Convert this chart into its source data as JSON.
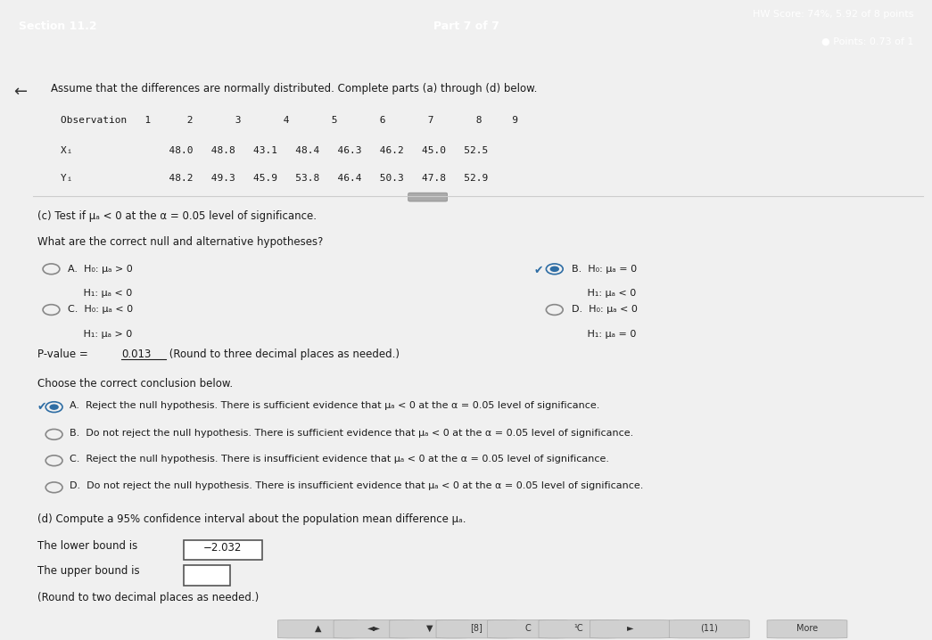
{
  "header_bg": "#2e6da4",
  "header_text_center": "Part 7 of 7",
  "body_bg": "#f0f0f0",
  "main_bg": "#ffffff",
  "title_text": "Assume that the differences are normally distributed. Complete parts (a) through (d) below.",
  "part_c_header": "(c) Test if μₐ < 0 at the α = 0.05 level of significance.",
  "hypotheses_prompt": "What are the correct null and alternative hypotheses?",
  "opt_A_h0": "H₀: μₐ > 0",
  "opt_A_h1": "H₁: μₐ < 0",
  "opt_B_h0": "H₀: μₐ = 0",
  "opt_B_h1": "H₁: μₐ < 0",
  "opt_C_h0": "H₀: μₐ < 0",
  "opt_C_h1": "H₁: μₐ > 0",
  "opt_D_h0": "H₀: μₐ < 0",
  "opt_D_h1": "H₁: μₐ = 0",
  "pvalue_prefix": "P-value = ",
  "pvalue_val": "0.013",
  "pvalue_suffix": " (Round to three decimal places as needed.)",
  "conclusion_prompt": "Choose the correct conclusion below.",
  "concl_A": "Reject the null hypothesis. There is sufficient evidence that μₐ < 0 at the α = 0.05 level of significance.",
  "concl_B": "Do not reject the null hypothesis. There is sufficient evidence that μₐ < 0 at the α = 0.05 level of significance.",
  "concl_C": "Reject the null hypothesis. There is insufficient evidence that μₐ < 0 at the α = 0.05 level of significance.",
  "concl_D": "Do not reject the null hypothesis. There is insufficient evidence that μₐ < 0 at the α = 0.05 level of significance.",
  "part_d_header": "(d) Compute a 95% confidence interval about the population mean difference μₐ.",
  "lower_bound_label": "The lower bound is",
  "lower_bound_value": "−2.032",
  "upper_bound_label": "The upper bound is",
  "round_note": "(Round to two decimal places as needed.)",
  "text_color": "#1a1a1a",
  "selected_color": "#2e6da4",
  "radio_unsel_color": "#888888",
  "separator_color": "#cccccc"
}
